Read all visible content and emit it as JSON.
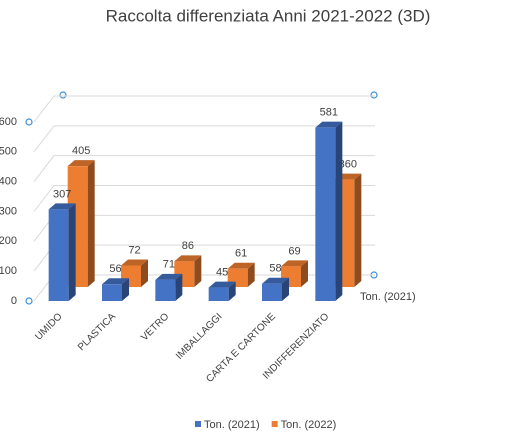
{
  "chart_data": {
    "type": "bar3d",
    "title": "Raccolta differenziata Anni 2021-2022 (3D)",
    "categories": [
      "UMIDO",
      "PLASTICA",
      "VETRO",
      "IMBALLAGGI",
      "CARTA E CARTONE",
      "INDIFFERENZIATO"
    ],
    "series": [
      {
        "name": "Ton. (2021)",
        "color": "#4472c4",
        "values": [
          307,
          56,
          71,
          45,
          58,
          581
        ]
      },
      {
        "name": "Ton. (2022)",
        "color": "#ed7d31",
        "values": [
          405,
          72,
          86,
          61,
          69,
          360
        ]
      }
    ],
    "ylim": [
      0,
      600
    ],
    "yticks": [
      0,
      100,
      200,
      300,
      400,
      500,
      600
    ],
    "grid": true,
    "legend": "bottom"
  }
}
